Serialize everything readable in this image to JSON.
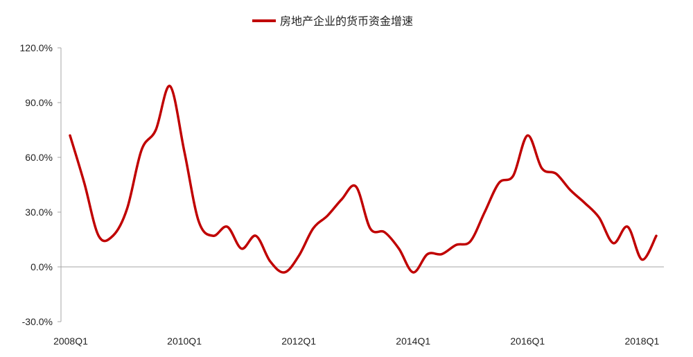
{
  "chart_data": {
    "type": "line",
    "title": "",
    "xlabel": "",
    "ylabel": "",
    "ylim": [
      -30,
      120
    ],
    "y_ticks": [
      -30,
      0,
      30,
      60,
      90,
      120
    ],
    "y_tick_labels": [
      "-30.0%",
      "0.0%",
      "30.0%",
      "60.0%",
      "90.0%",
      "120.0%"
    ],
    "x_tick_labels": [
      "2008Q1",
      "2010Q1",
      "2012Q1",
      "2014Q1",
      "2016Q1",
      "2018Q1"
    ],
    "x_tick_index": [
      0,
      8,
      16,
      24,
      32,
      40
    ],
    "legend": {
      "position": "top-center"
    },
    "grid": false,
    "colors": {
      "series": "#c00000",
      "axis": "#a6a6a6"
    },
    "categories": [
      "2008Q1",
      "2008Q2",
      "2008Q3",
      "2008Q4",
      "2009Q1",
      "2009Q2",
      "2009Q3",
      "2009Q4",
      "2010Q1",
      "2010Q2",
      "2010Q3",
      "2010Q4",
      "2011Q1",
      "2011Q2",
      "2011Q3",
      "2011Q4",
      "2012Q1",
      "2012Q2",
      "2012Q3",
      "2012Q4",
      "2013Q1",
      "2013Q2",
      "2013Q3",
      "2013Q4",
      "2014Q1",
      "2014Q2",
      "2014Q3",
      "2014Q4",
      "2015Q1",
      "2015Q2",
      "2015Q3",
      "2015Q4",
      "2016Q1",
      "2016Q2",
      "2016Q3",
      "2016Q4",
      "2017Q1",
      "2017Q2",
      "2017Q3",
      "2017Q4",
      "2018Q1",
      "2018Q2"
    ],
    "series": [
      {
        "name": "房地产企业的货币资金增速",
        "values": [
          72,
          46,
          17,
          17,
          32,
          64,
          75,
          99,
          63,
          25,
          17,
          22,
          10,
          17,
          3,
          -3,
          6,
          21,
          28,
          37,
          44,
          21,
          19,
          10,
          -3,
          7,
          7,
          12,
          14,
          30,
          46,
          50,
          72,
          54,
          51,
          42,
          35,
          27,
          13,
          22,
          4,
          17
        ]
      }
    ]
  }
}
